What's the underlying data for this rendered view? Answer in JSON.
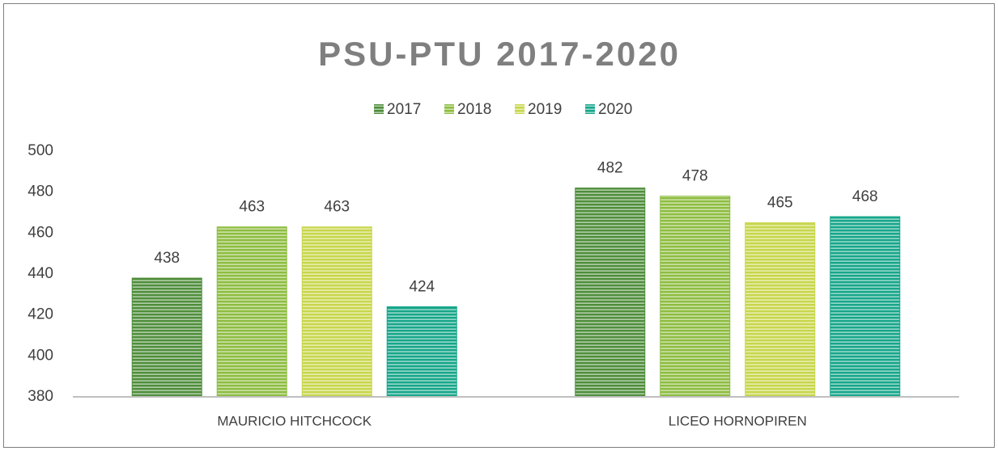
{
  "chart_data": {
    "type": "bar",
    "title": "PSU-PTU 2017-2020",
    "categories": [
      "MAURICIO HITCHCOCK",
      "LICEO HORNOPIREN"
    ],
    "series": [
      {
        "name": "2017",
        "color": "#4f8e3b",
        "values": [
          438,
          482
        ]
      },
      {
        "name": "2018",
        "color": "#8dbd40",
        "values": [
          463,
          478
        ]
      },
      {
        "name": "2019",
        "color": "#c8d64b",
        "values": [
          463,
          465
        ]
      },
      {
        "name": "2020",
        "color": "#17a68a",
        "values": [
          424,
          468
        ]
      }
    ],
    "ylim": [
      380,
      500
    ],
    "yticks": [
      380,
      400,
      420,
      440,
      460,
      480,
      500
    ],
    "grid": false,
    "legend": "top"
  }
}
